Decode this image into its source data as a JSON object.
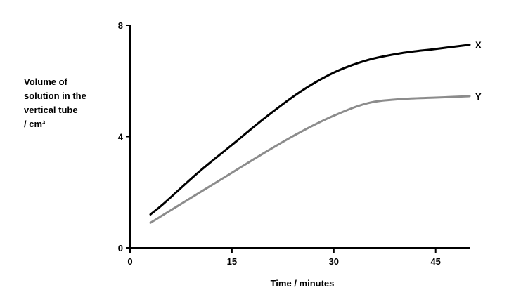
{
  "chart_data": {
    "type": "line",
    "xlabel": "Time / minutes",
    "ylabel_lines": [
      "Volume of",
      "solution in the",
      "vertical tube",
      "/ cm³"
    ],
    "xlim": [
      0,
      50
    ],
    "ylim": [
      0,
      8
    ],
    "xticks": [
      0,
      15,
      30,
      45
    ],
    "yticks": [
      0,
      4,
      8
    ],
    "grid": false,
    "series": [
      {
        "name": "X",
        "color": "#000000",
        "x": [
          3,
          5,
          10,
          15,
          20,
          25,
          30,
          35,
          40,
          45,
          50
        ],
        "y": [
          1.2,
          1.6,
          2.7,
          3.7,
          4.7,
          5.6,
          6.3,
          6.75,
          7.0,
          7.15,
          7.3
        ]
      },
      {
        "name": "Y",
        "color": "#8c8c8c",
        "x": [
          3,
          5,
          10,
          15,
          20,
          25,
          30,
          35,
          40,
          45,
          50
        ],
        "y": [
          0.9,
          1.2,
          1.95,
          2.7,
          3.45,
          4.15,
          4.75,
          5.2,
          5.35,
          5.4,
          5.45
        ]
      }
    ]
  }
}
